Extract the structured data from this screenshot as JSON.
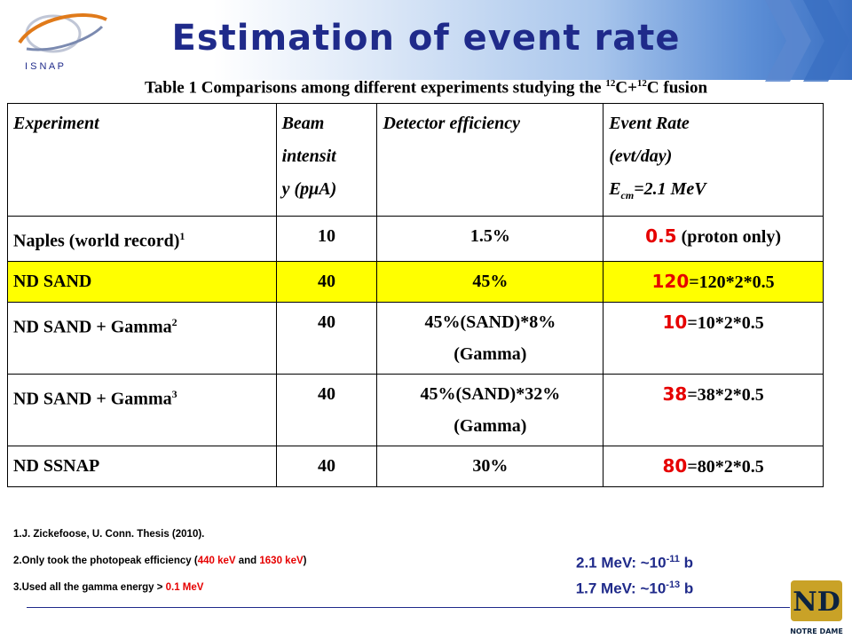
{
  "slide": {
    "title": "Estimation of event rate",
    "caption_prefix": "Table 1 Comparisons among different experiments studying the ",
    "caption_sup1": "12",
    "caption_mid": "C+",
    "caption_sup2": "12",
    "caption_suffix": "C fusion",
    "logo_text": "I S N A P"
  },
  "table": {
    "headers": {
      "experiment": "Experiment",
      "beam_line1": "Beam",
      "beam_line2": "intensit",
      "beam_line3": "y (pμA)",
      "detector": "Detector efficiency",
      "rate_line1": "Event Rate",
      "rate_line2": "(evt/day)",
      "rate_line3_pre": "E",
      "rate_line3_sub": "cm",
      "rate_line3_post": "=2.1 MeV"
    },
    "rows": [
      {
        "experiment": "Naples (world record)",
        "sup": "1",
        "beam": "10",
        "eff1": "1.5%",
        "eff2": "",
        "rate": "0.5",
        "rate_note": " (proton only)"
      },
      {
        "experiment": "ND SAND",
        "sup": "",
        "beam": "40",
        "eff1": "45%",
        "eff2": "",
        "rate": "120",
        "rate_note": "=120*2*0.5"
      },
      {
        "experiment": "ND SAND + Gamma",
        "sup": "2",
        "beam": "40",
        "eff1": "45%(SAND)*8%",
        "eff2": "(Gamma)",
        "rate": "10",
        "rate_note": "=10*2*0.5"
      },
      {
        "experiment": "ND SAND + Gamma",
        "sup": "3",
        "beam": "40",
        "eff1": "45%(SAND)*32%",
        "eff2": "(Gamma)",
        "rate": "38",
        "rate_note": "=38*2*0.5"
      },
      {
        "experiment": "ND SSNAP",
        "sup": "",
        "beam": "40",
        "eff1": "30%",
        "eff2": "",
        "rate": "80",
        "rate_note": "=80*2*0.5"
      }
    ]
  },
  "notes": {
    "n1": "1.J. Zickefoose, U. Conn. Thesis (2010).",
    "n2_pre": "2.Only took the photopeak efficiency (",
    "n2_a": "440 keV",
    "n2_mid": " and ",
    "n2_b": "1630 keV",
    "n2_post": ")",
    "n3_pre": "3.Used all the gamma energy > ",
    "n3_val": "0.1 MeV"
  },
  "cross_sections": {
    "l1_pre": "2.1 MeV: ~10",
    "l1_sup": "-11",
    "l1_post": " b",
    "l2_pre": "1.7 MeV: ~10",
    "l2_sup": "-13",
    "l2_post": " b"
  },
  "footer": {
    "nd_logo_text": "NOTRE DAME"
  },
  "colors": {
    "title": "#1f2a8a",
    "highlight": "#ffff00",
    "rate_red": "#e60000"
  }
}
